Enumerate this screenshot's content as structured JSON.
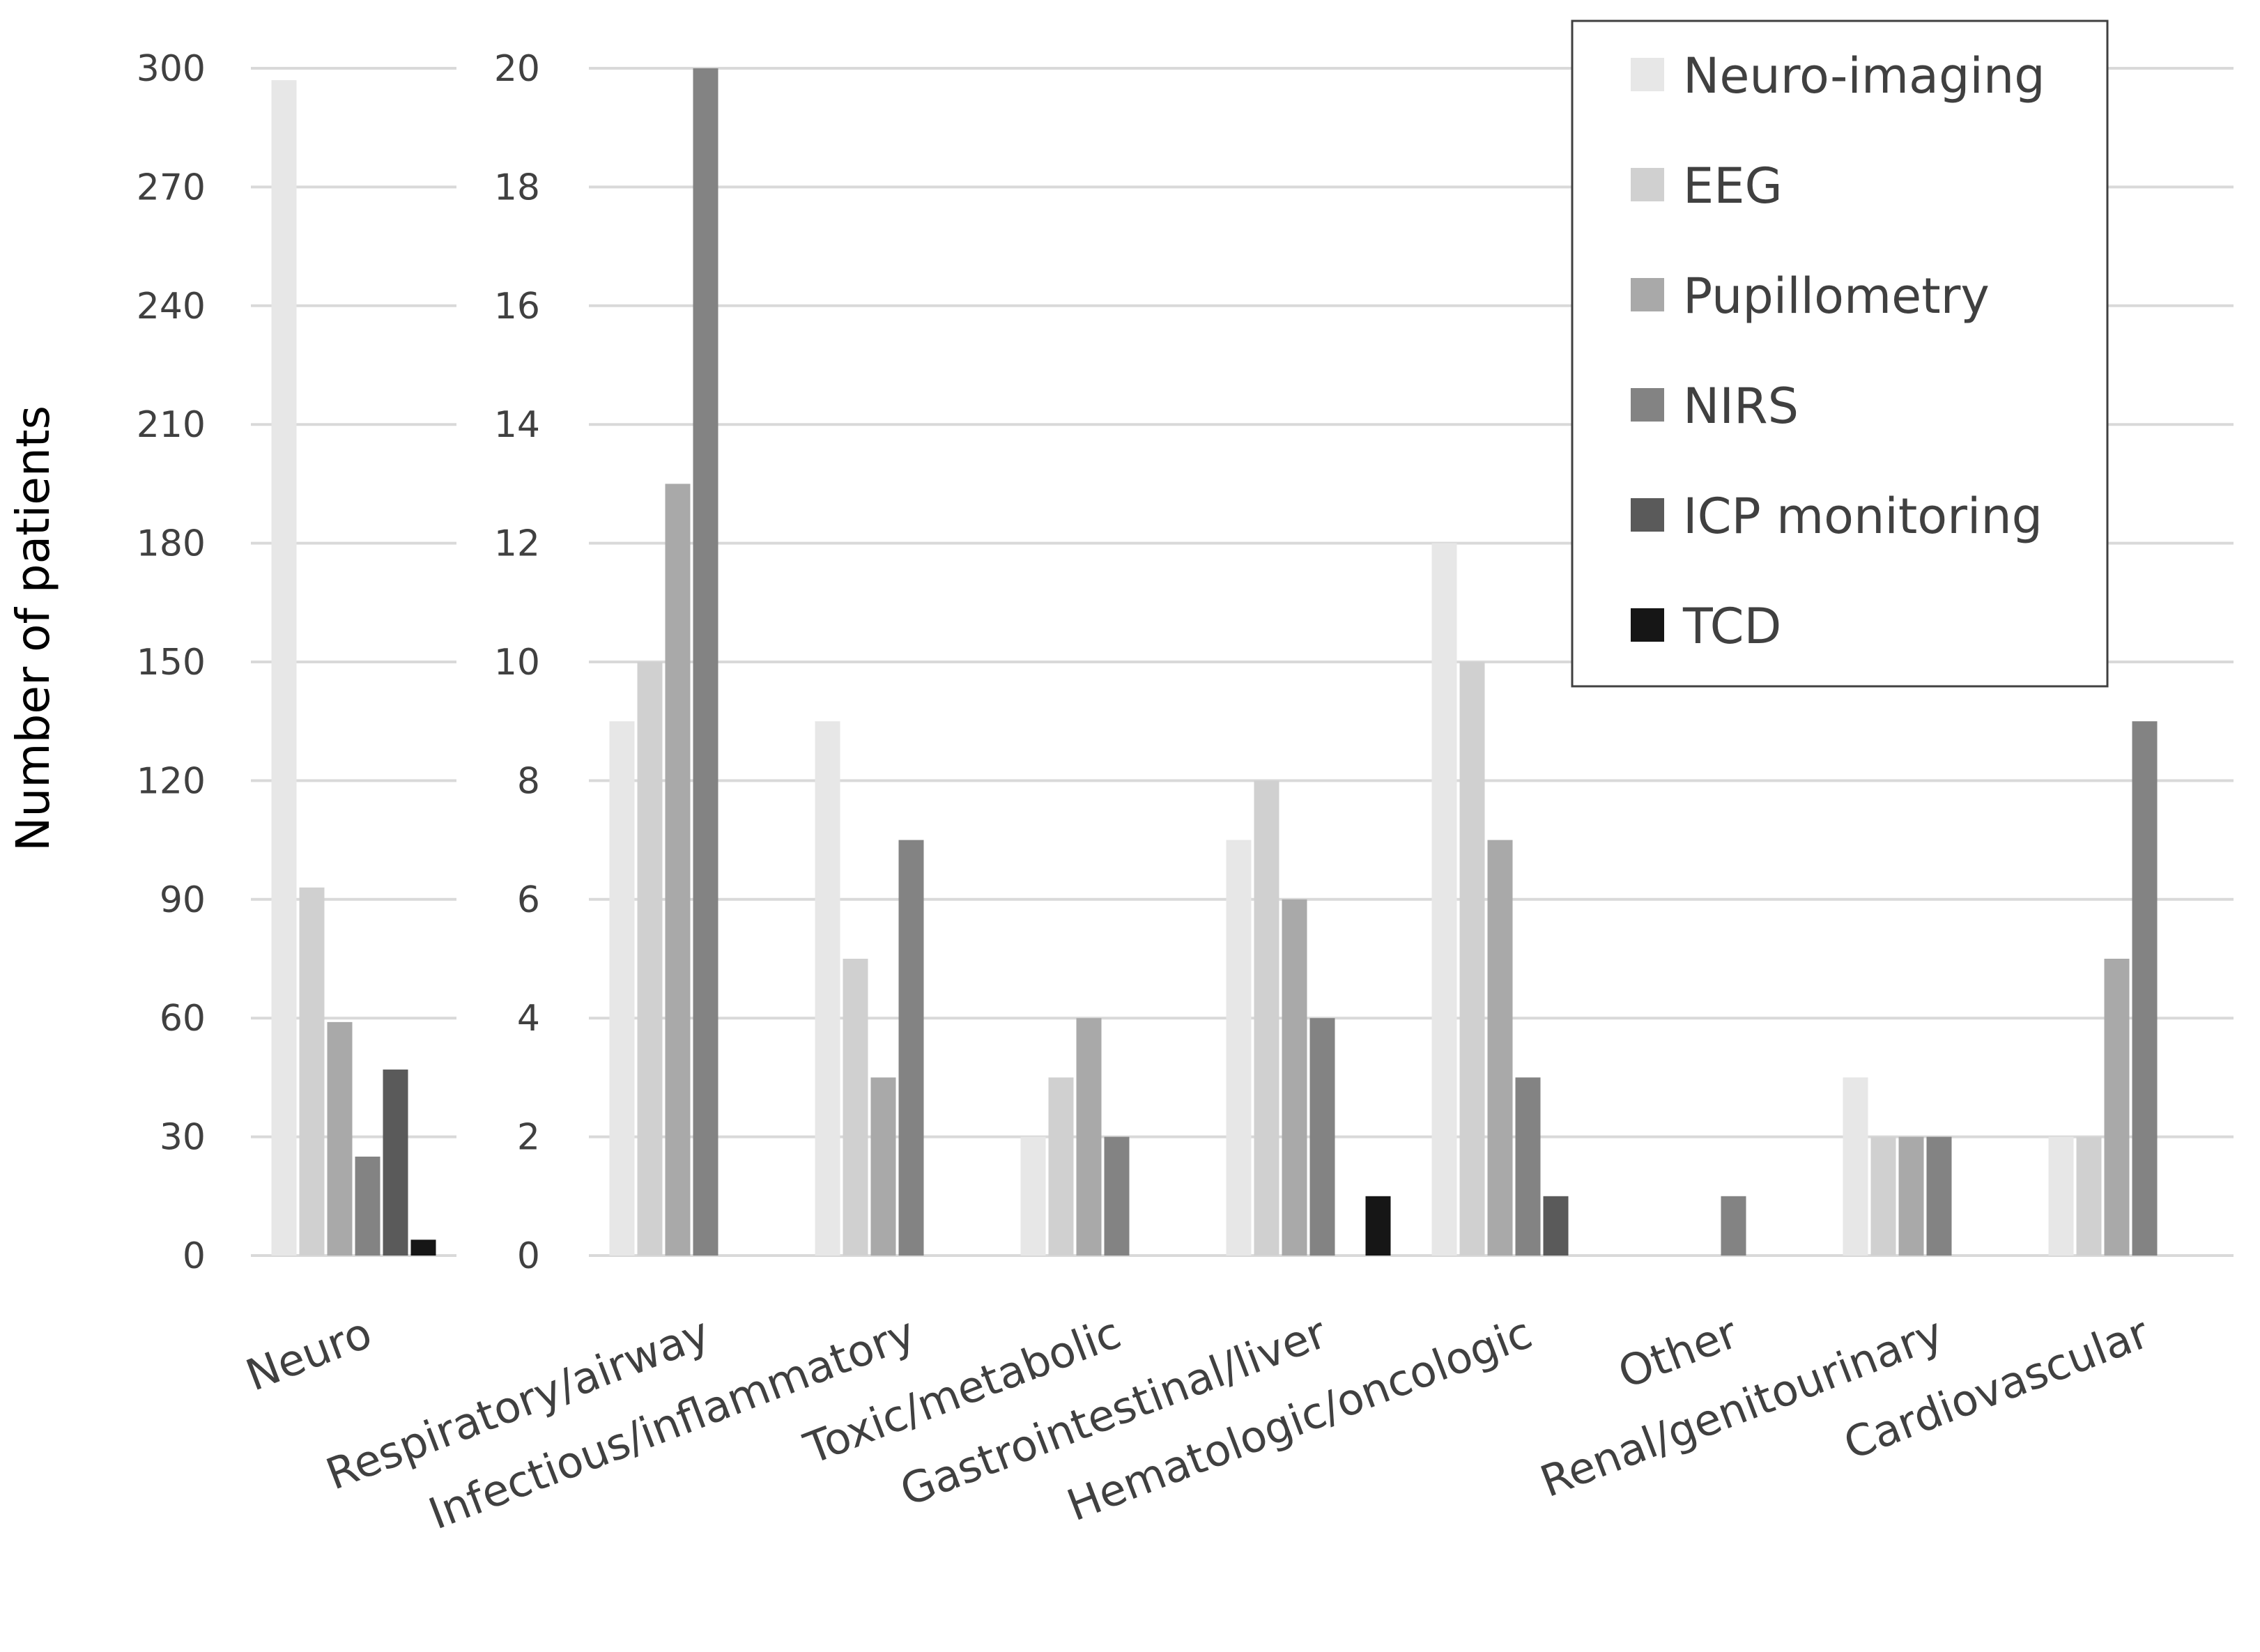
{
  "chart_data": {
    "type": "bar",
    "ylabel": "Number of patients",
    "legend_placement": "top-right",
    "grid": true,
    "series": [
      {
        "name": "Neuro-imaging",
        "color": "#e7e7e7"
      },
      {
        "name": "EEG",
        "color": "#d0d0d0"
      },
      {
        "name": "Pupillometry",
        "color": "#a9a9a9"
      },
      {
        "name": "NIRS",
        "color": "#838383"
      },
      {
        "name": "ICP monitoring",
        "color": "#5a5a5a"
      },
      {
        "name": "TCD",
        "color": "#161616"
      }
    ],
    "panels": [
      {
        "ylim": [
          0,
          300
        ],
        "yticks": [
          0,
          30,
          60,
          90,
          120,
          150,
          180,
          210,
          240,
          270,
          300
        ],
        "categories": [
          "Neuro"
        ],
        "values": [
          [
            297,
            93,
            59,
            25,
            47,
            4
          ]
        ]
      },
      {
        "ylim": [
          0,
          20
        ],
        "yticks": [
          0,
          2,
          4,
          6,
          8,
          10,
          12,
          14,
          16,
          18,
          20
        ],
        "categories": [
          "Respiratory/airway",
          "Infectious/inflammatory",
          "Toxic/metabolic",
          "Gastrointestinal/liver",
          "Hematologic/oncologic",
          "Other",
          "Renal/genitourinary",
          "Cardiovascular"
        ],
        "values": [
          [
            9,
            10,
            13,
            20,
            0,
            0
          ],
          [
            9,
            5,
            3,
            7,
            0,
            0
          ],
          [
            2,
            3,
            4,
            2,
            0,
            0
          ],
          [
            7,
            8,
            6,
            4,
            0,
            1
          ],
          [
            12,
            10,
            7,
            3,
            1,
            0
          ],
          [
            0,
            0,
            0,
            1,
            0,
            0
          ],
          [
            3,
            2,
            2,
            2,
            0,
            0
          ],
          [
            2,
            2,
            5,
            9,
            0,
            0
          ]
        ]
      }
    ]
  }
}
